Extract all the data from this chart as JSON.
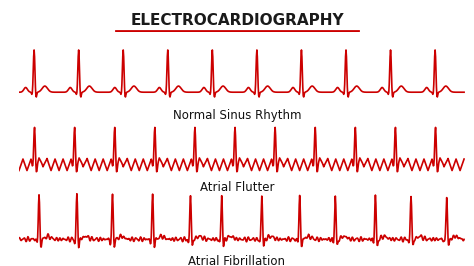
{
  "title": "ELECTROCARDIOGRAPHY",
  "title_color": "#1a1a1a",
  "title_underline_color": "#cc0000",
  "ecg_color": "#cc0000",
  "background_color": "#ffffff",
  "labels": [
    "Normal Sinus Rhythm",
    "Atrial Flutter",
    "Atrial Fibrillation"
  ],
  "label_fontsize": 8.5,
  "title_fontsize": 11,
  "line_width": 1.2
}
